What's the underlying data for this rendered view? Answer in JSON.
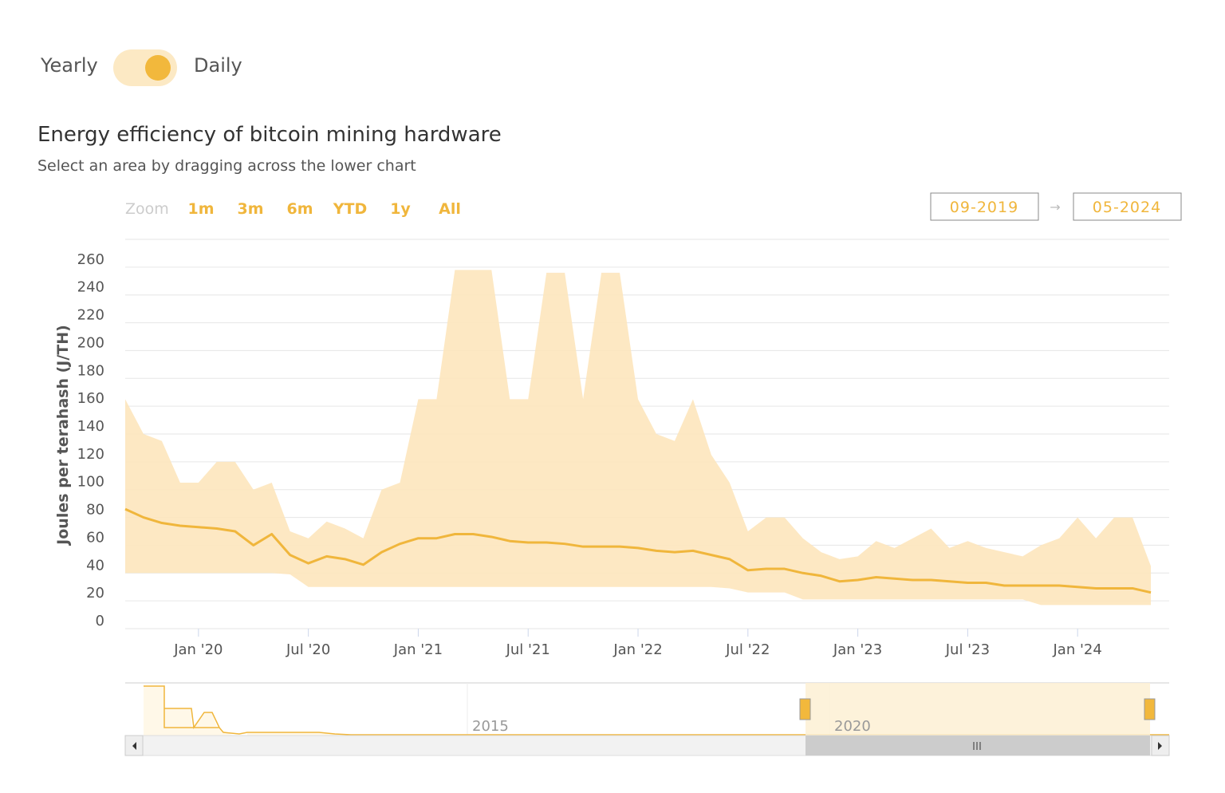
{
  "toggle": {
    "left": "Yearly",
    "right": "Daily"
  },
  "zoom": {
    "label": "Zoom",
    "buttons": [
      "1m",
      "3m",
      "6m",
      "YTD",
      "1y",
      "All"
    ]
  },
  "date_range": {
    "from": "09-2019",
    "separator": "→",
    "to": "05-2024"
  },
  "navigator": {
    "labels": [
      "2015",
      "2020"
    ]
  },
  "chart_data": {
    "type": "line",
    "title": "Energy efficiency of bitcoin mining hardware",
    "subtitle": "Select an area by dragging across the lower chart",
    "y_label": "Joules per terahash (J/TH)",
    "ylim": [
      0,
      280
    ],
    "yticks": [
      0,
      20,
      40,
      60,
      80,
      100,
      120,
      140,
      160,
      180,
      200,
      220,
      240,
      260
    ],
    "grid": true,
    "xlim": [
      "2019-09",
      "2024-06"
    ],
    "xticks": [
      {
        "value": "2020-01",
        "label": "Jan '20"
      },
      {
        "value": "2020-07",
        "label": "Jul '20"
      },
      {
        "value": "2021-01",
        "label": "Jan '21"
      },
      {
        "value": "2021-07",
        "label": "Jul '21"
      },
      {
        "value": "2022-01",
        "label": "Jan '22"
      },
      {
        "value": "2022-07",
        "label": "Jul '22"
      },
      {
        "value": "2023-01",
        "label": "Jan '23"
      },
      {
        "value": "2023-07",
        "label": "Jul '23"
      },
      {
        "value": "2024-01",
        "label": "Jan '24"
      }
    ],
    "x": [
      "2019-09",
      "2019-10",
      "2019-11",
      "2019-12",
      "2020-01",
      "2020-02",
      "2020-03",
      "2020-04",
      "2020-05",
      "2020-06",
      "2020-07",
      "2020-08",
      "2020-09",
      "2020-10",
      "2020-11",
      "2020-12",
      "2021-01",
      "2021-02",
      "2021-03",
      "2021-04",
      "2021-05",
      "2021-06",
      "2021-07",
      "2021-08",
      "2021-09",
      "2021-10",
      "2021-11",
      "2021-12",
      "2022-01",
      "2022-02",
      "2022-03",
      "2022-04",
      "2022-05",
      "2022-06",
      "2022-07",
      "2022-08",
      "2022-09",
      "2022-10",
      "2022-11",
      "2022-12",
      "2023-01",
      "2023-02",
      "2023-03",
      "2023-04",
      "2023-05",
      "2023-06",
      "2023-07",
      "2023-08",
      "2023-09",
      "2023-10",
      "2023-11",
      "2023-12",
      "2024-01",
      "2024-02",
      "2024-03",
      "2024-04",
      "2024-05"
    ],
    "series": [
      {
        "type": "arearange",
        "color": "#fde6bd",
        "high": [
          165,
          140,
          135,
          105,
          105,
          120,
          120,
          100,
          105,
          70,
          65,
          77,
          72,
          65,
          100,
          105,
          165,
          165,
          258,
          258,
          258,
          165,
          165,
          256,
          256,
          165,
          256,
          256,
          165,
          140,
          135,
          165,
          125,
          105,
          70,
          80,
          80,
          65,
          55,
          50,
          52,
          63,
          58,
          65,
          72,
          58,
          63,
          58,
          55,
          52,
          60,
          65,
          80,
          65,
          80,
          80,
          45
        ],
        "low": [
          40,
          40,
          40,
          40,
          40,
          40,
          40,
          40,
          40,
          39,
          30,
          30,
          30,
          30,
          30,
          30,
          30,
          30,
          30,
          30,
          30,
          30,
          30,
          30,
          30,
          30,
          30,
          30,
          30,
          30,
          30,
          30,
          30,
          29,
          26,
          26,
          26,
          21,
          21,
          21,
          21,
          21,
          21,
          21,
          21,
          21,
          21,
          21,
          21,
          21,
          17,
          17,
          17,
          17,
          17,
          17,
          17
        ]
      },
      {
        "type": "line",
        "color": "#f0b63c",
        "values": [
          86,
          80,
          76,
          74,
          73,
          72,
          70,
          60,
          68,
          53,
          47,
          52,
          50,
          46,
          55,
          61,
          65,
          65,
          68,
          68,
          66,
          63,
          62,
          62,
          61,
          59,
          59,
          59,
          58,
          56,
          55,
          56,
          53,
          50,
          42,
          43,
          43,
          40,
          38,
          34,
          35,
          37,
          36,
          35,
          35,
          34,
          33,
          33,
          31,
          31,
          31,
          31,
          30,
          29,
          29,
          29,
          26
        ]
      }
    ]
  }
}
